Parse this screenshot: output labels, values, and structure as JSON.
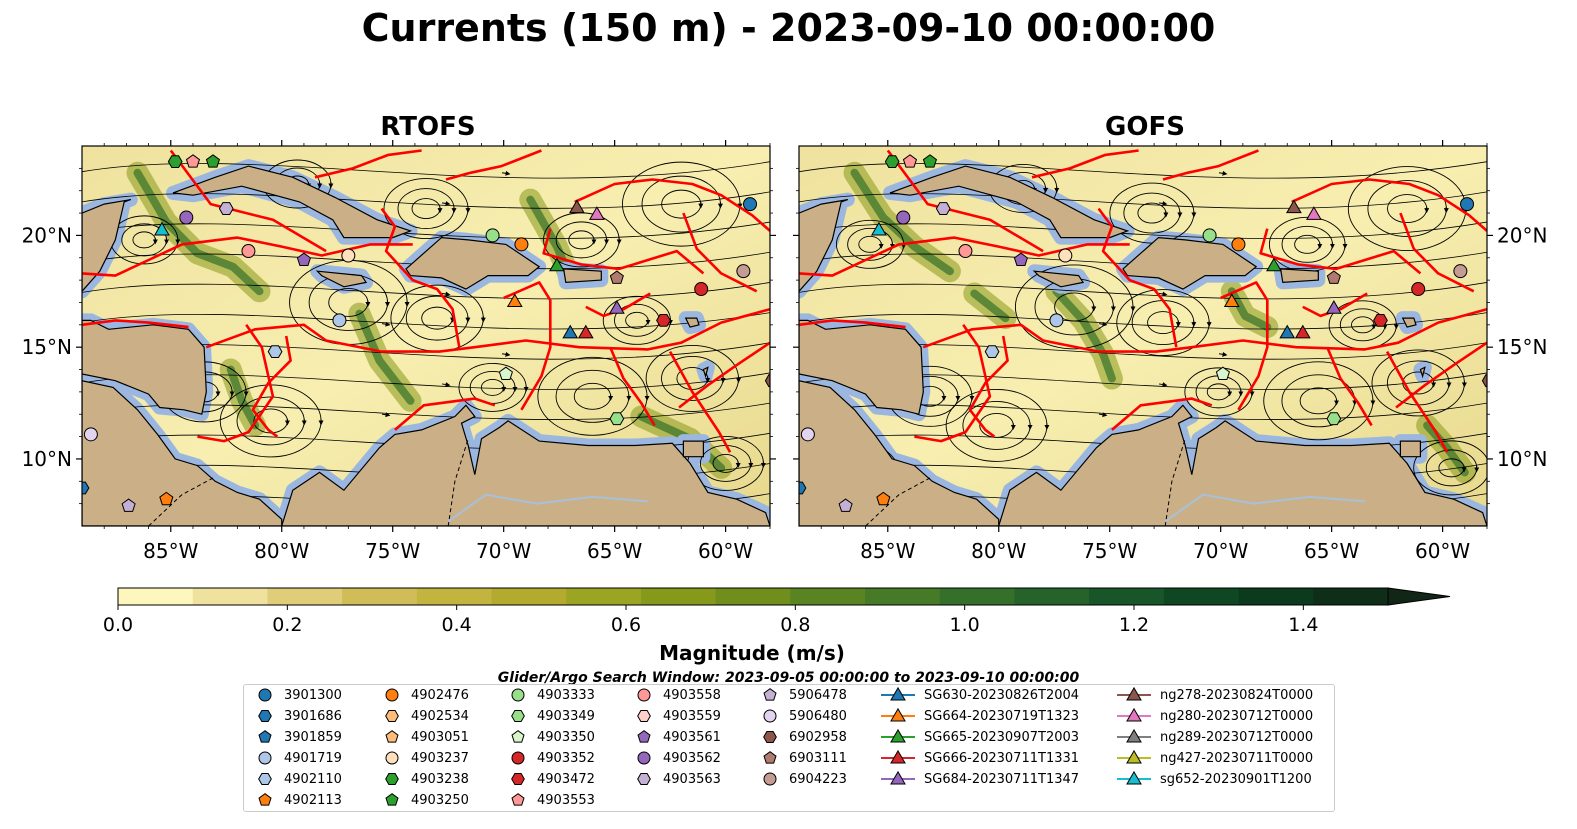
{
  "title": "Currents (150 m) - 2023-09-10 00:00:00",
  "panels": [
    {
      "title": "RTOFS"
    },
    {
      "title": "GOFS"
    }
  ],
  "colors": {
    "land": "#cbb087",
    "shallow": "#9bb7e0",
    "region_lines": "#ff0000",
    "streamlines": "#000000",
    "river": "#a8c0d8"
  },
  "chart_data": {
    "type": "heatmap",
    "title": "Currents (150 m) - 2023-09-10 00:00:00",
    "subplots": [
      "RTOFS",
      "GOFS"
    ],
    "x_ticks": [
      "85°W",
      "80°W",
      "75°W",
      "70°W",
      "65°W",
      "60°W"
    ],
    "x_tick_values": [
      -85,
      -80,
      -75,
      -70,
      -65,
      -60
    ],
    "y_ticks": [
      "20°N",
      "15°N",
      "10°N"
    ],
    "y_tick_values": [
      20,
      15,
      10
    ],
    "xlim": [
      -89,
      -58
    ],
    "ylim": [
      7,
      24
    ],
    "colorbar": {
      "label": "Magnitude (m/s)",
      "ticks": [
        "0.0",
        "0.2",
        "0.4",
        "0.6",
        "0.8",
        "1.0",
        "1.2",
        "1.4"
      ],
      "tick_values": [
        0.0,
        0.2,
        0.4,
        0.6,
        0.8,
        1.0,
        1.2,
        1.4
      ],
      "range": [
        0,
        1.5
      ],
      "extend": "max",
      "colors": [
        "#fdf6bd",
        "#efe29e",
        "#dfcd7a",
        "#d0bd58",
        "#c3b33f",
        "#b2ab2e",
        "#9ca423",
        "#86991a",
        "#6f8e1b",
        "#5a8321",
        "#477a26",
        "#35702a",
        "#25632b",
        "#185528",
        "#0f4722",
        "#0c3a1c",
        "#0e2e18",
        "#112616"
      ]
    },
    "search_window": "Glider/Argo Search Window: 2023-09-05 00:00:00 to 2023-09-10 00:00:00",
    "legend": {
      "entries": [
        {
          "name": "3901300",
          "marker": "circle",
          "color": "#1f77b4"
        },
        {
          "name": "3901686",
          "marker": "hexagon",
          "color": "#1f77b4"
        },
        {
          "name": "3901859",
          "marker": "pentagon",
          "color": "#1f77b4"
        },
        {
          "name": "4901719",
          "marker": "circle",
          "color": "#aec7e8"
        },
        {
          "name": "4902110",
          "marker": "hexagon",
          "color": "#aec7e8"
        },
        {
          "name": "4902113",
          "marker": "pentagon",
          "color": "#ff7f0e"
        },
        {
          "name": "4902476",
          "marker": "circle",
          "color": "#ff7f0e"
        },
        {
          "name": "4902534",
          "marker": "hexagon",
          "color": "#ffbb78"
        },
        {
          "name": "4903051",
          "marker": "pentagon",
          "color": "#ffbb78"
        },
        {
          "name": "4903237",
          "marker": "circle",
          "color": "#ffe0bd"
        },
        {
          "name": "4903238",
          "marker": "hexagon",
          "color": "#2ca02c"
        },
        {
          "name": "4903250",
          "marker": "pentagon",
          "color": "#2ca02c"
        },
        {
          "name": "4903333",
          "marker": "circle",
          "color": "#98df8a"
        },
        {
          "name": "4903349",
          "marker": "hexagon",
          "color": "#98df8a"
        },
        {
          "name": "4903350",
          "marker": "pentagon",
          "color": "#d8f5cc"
        },
        {
          "name": "4903352",
          "marker": "circle",
          "color": "#d62728"
        },
        {
          "name": "4903472",
          "marker": "hexagon",
          "color": "#d62728"
        },
        {
          "name": "4903553",
          "marker": "pentagon",
          "color": "#ff9896"
        },
        {
          "name": "4903558",
          "marker": "circle",
          "color": "#ff9896"
        },
        {
          "name": "4903559",
          "marker": "hexagon",
          "color": "#ffcfc9"
        },
        {
          "name": "4903561",
          "marker": "pentagon",
          "color": "#9467bd"
        },
        {
          "name": "4903562",
          "marker": "circle",
          "color": "#9467bd"
        },
        {
          "name": "4903563",
          "marker": "hexagon",
          "color": "#c5b0d5"
        },
        {
          "name": "5906478",
          "marker": "pentagon",
          "color": "#c5b0d5"
        },
        {
          "name": "5906480",
          "marker": "circle",
          "color": "#e2d4ee"
        },
        {
          "name": "6902958",
          "marker": "hexagon",
          "color": "#8c564b"
        },
        {
          "name": "6903111",
          "marker": "pentagon",
          "color": "#b07a6e"
        },
        {
          "name": "6904223",
          "marker": "circle",
          "color": "#c49c94"
        },
        {
          "name": "SG630-20230826T2004",
          "marker": "triangle-line",
          "color": "#1f77b4"
        },
        {
          "name": "SG664-20230719T1323",
          "marker": "triangle-line",
          "color": "#ff7f0e"
        },
        {
          "name": "SG665-20230907T2003",
          "marker": "triangle-line",
          "color": "#2ca02c"
        },
        {
          "name": "SG666-20230711T1331",
          "marker": "triangle-line",
          "color": "#d62728"
        },
        {
          "name": "SG684-20230711T1347",
          "marker": "triangle-line",
          "color": "#9467bd"
        },
        {
          "name": "ng278-20230824T0000",
          "marker": "triangle-line",
          "color": "#8c564b"
        },
        {
          "name": "ng280-20230712T0000",
          "marker": "triangle-line",
          "color": "#e377c2"
        },
        {
          "name": "ng289-20230712T0000",
          "marker": "triangle-line",
          "color": "#7f7f7f"
        },
        {
          "name": "ng427-20230711T0000",
          "marker": "triangle-line",
          "color": "#bcbd22"
        },
        {
          "name": "sg652-20230901T1200",
          "marker": "triangle-line",
          "color": "#17becf"
        }
      ]
    },
    "points": [
      {
        "id": "3901300",
        "lon": -58.9,
        "lat": 21.4
      },
      {
        "id": "3901686",
        "lon": -89.0,
        "lat": 8.7
      },
      {
        "id": "4902476",
        "lon": -69.2,
        "lat": 19.6
      },
      {
        "id": "4903237",
        "lon": -77.0,
        "lat": 19.1
      },
      {
        "id": "4903238",
        "lon": -84.8,
        "lat": 23.3
      },
      {
        "id": "4903250",
        "lon": -83.1,
        "lat": 23.3
      },
      {
        "id": "4903333",
        "lon": -70.5,
        "lat": 20.0
      },
      {
        "id": "4903349",
        "lon": -64.9,
        "lat": 11.8
      },
      {
        "id": "4903350",
        "lon": -69.9,
        "lat": 13.8
      },
      {
        "id": "4903352",
        "lon": -61.1,
        "lat": 17.6
      },
      {
        "id": "4903472",
        "lon": -62.8,
        "lat": 16.2
      },
      {
        "id": "4903553",
        "lon": -84.0,
        "lat": 23.3
      },
      {
        "id": "4903558",
        "lon": -81.5,
        "lat": 19.3
      },
      {
        "id": "4903561",
        "lon": -79.0,
        "lat": 18.9
      },
      {
        "id": "4903562",
        "lon": -84.3,
        "lat": 20.8
      },
      {
        "id": "4903563",
        "lon": -82.5,
        "lat": 21.2
      },
      {
        "id": "5906478",
        "lon": -86.9,
        "lat": 7.9
      },
      {
        "id": "5906480",
        "lon": -88.6,
        "lat": 11.1
      },
      {
        "id": "4901719",
        "lon": -77.4,
        "lat": 16.2
      },
      {
        "id": "4902110",
        "lon": -80.3,
        "lat": 14.8
      },
      {
        "id": "4902113",
        "lon": -85.2,
        "lat": 8.2
      },
      {
        "id": "6902958",
        "lon": -57.9,
        "lat": 13.5
      },
      {
        "id": "6903111",
        "lon": -64.9,
        "lat": 18.1
      },
      {
        "id": "6904223",
        "lon": -59.2,
        "lat": 18.4
      },
      {
        "id": "ng278-20230824T0000",
        "lon": -66.7,
        "lat": 21.2
      },
      {
        "id": "ng280-20230712T0000",
        "lon": -65.8,
        "lat": 20.9
      },
      {
        "id": "SG664-20230719T1323",
        "lon": -69.5,
        "lat": 17.0
      },
      {
        "id": "SG665-20230907T2003",
        "lon": -67.6,
        "lat": 18.6
      },
      {
        "id": "SG684-20230711T1347",
        "lon": -64.9,
        "lat": 16.7
      },
      {
        "id": "SG630-20230826T2004",
        "lon": -67.0,
        "lat": 15.6
      },
      {
        "id": "SG666-20230711T1331",
        "lon": -66.3,
        "lat": 15.6
      },
      {
        "id": "sg652-20230901T1200",
        "lon": -85.4,
        "lat": 20.2
      }
    ]
  }
}
